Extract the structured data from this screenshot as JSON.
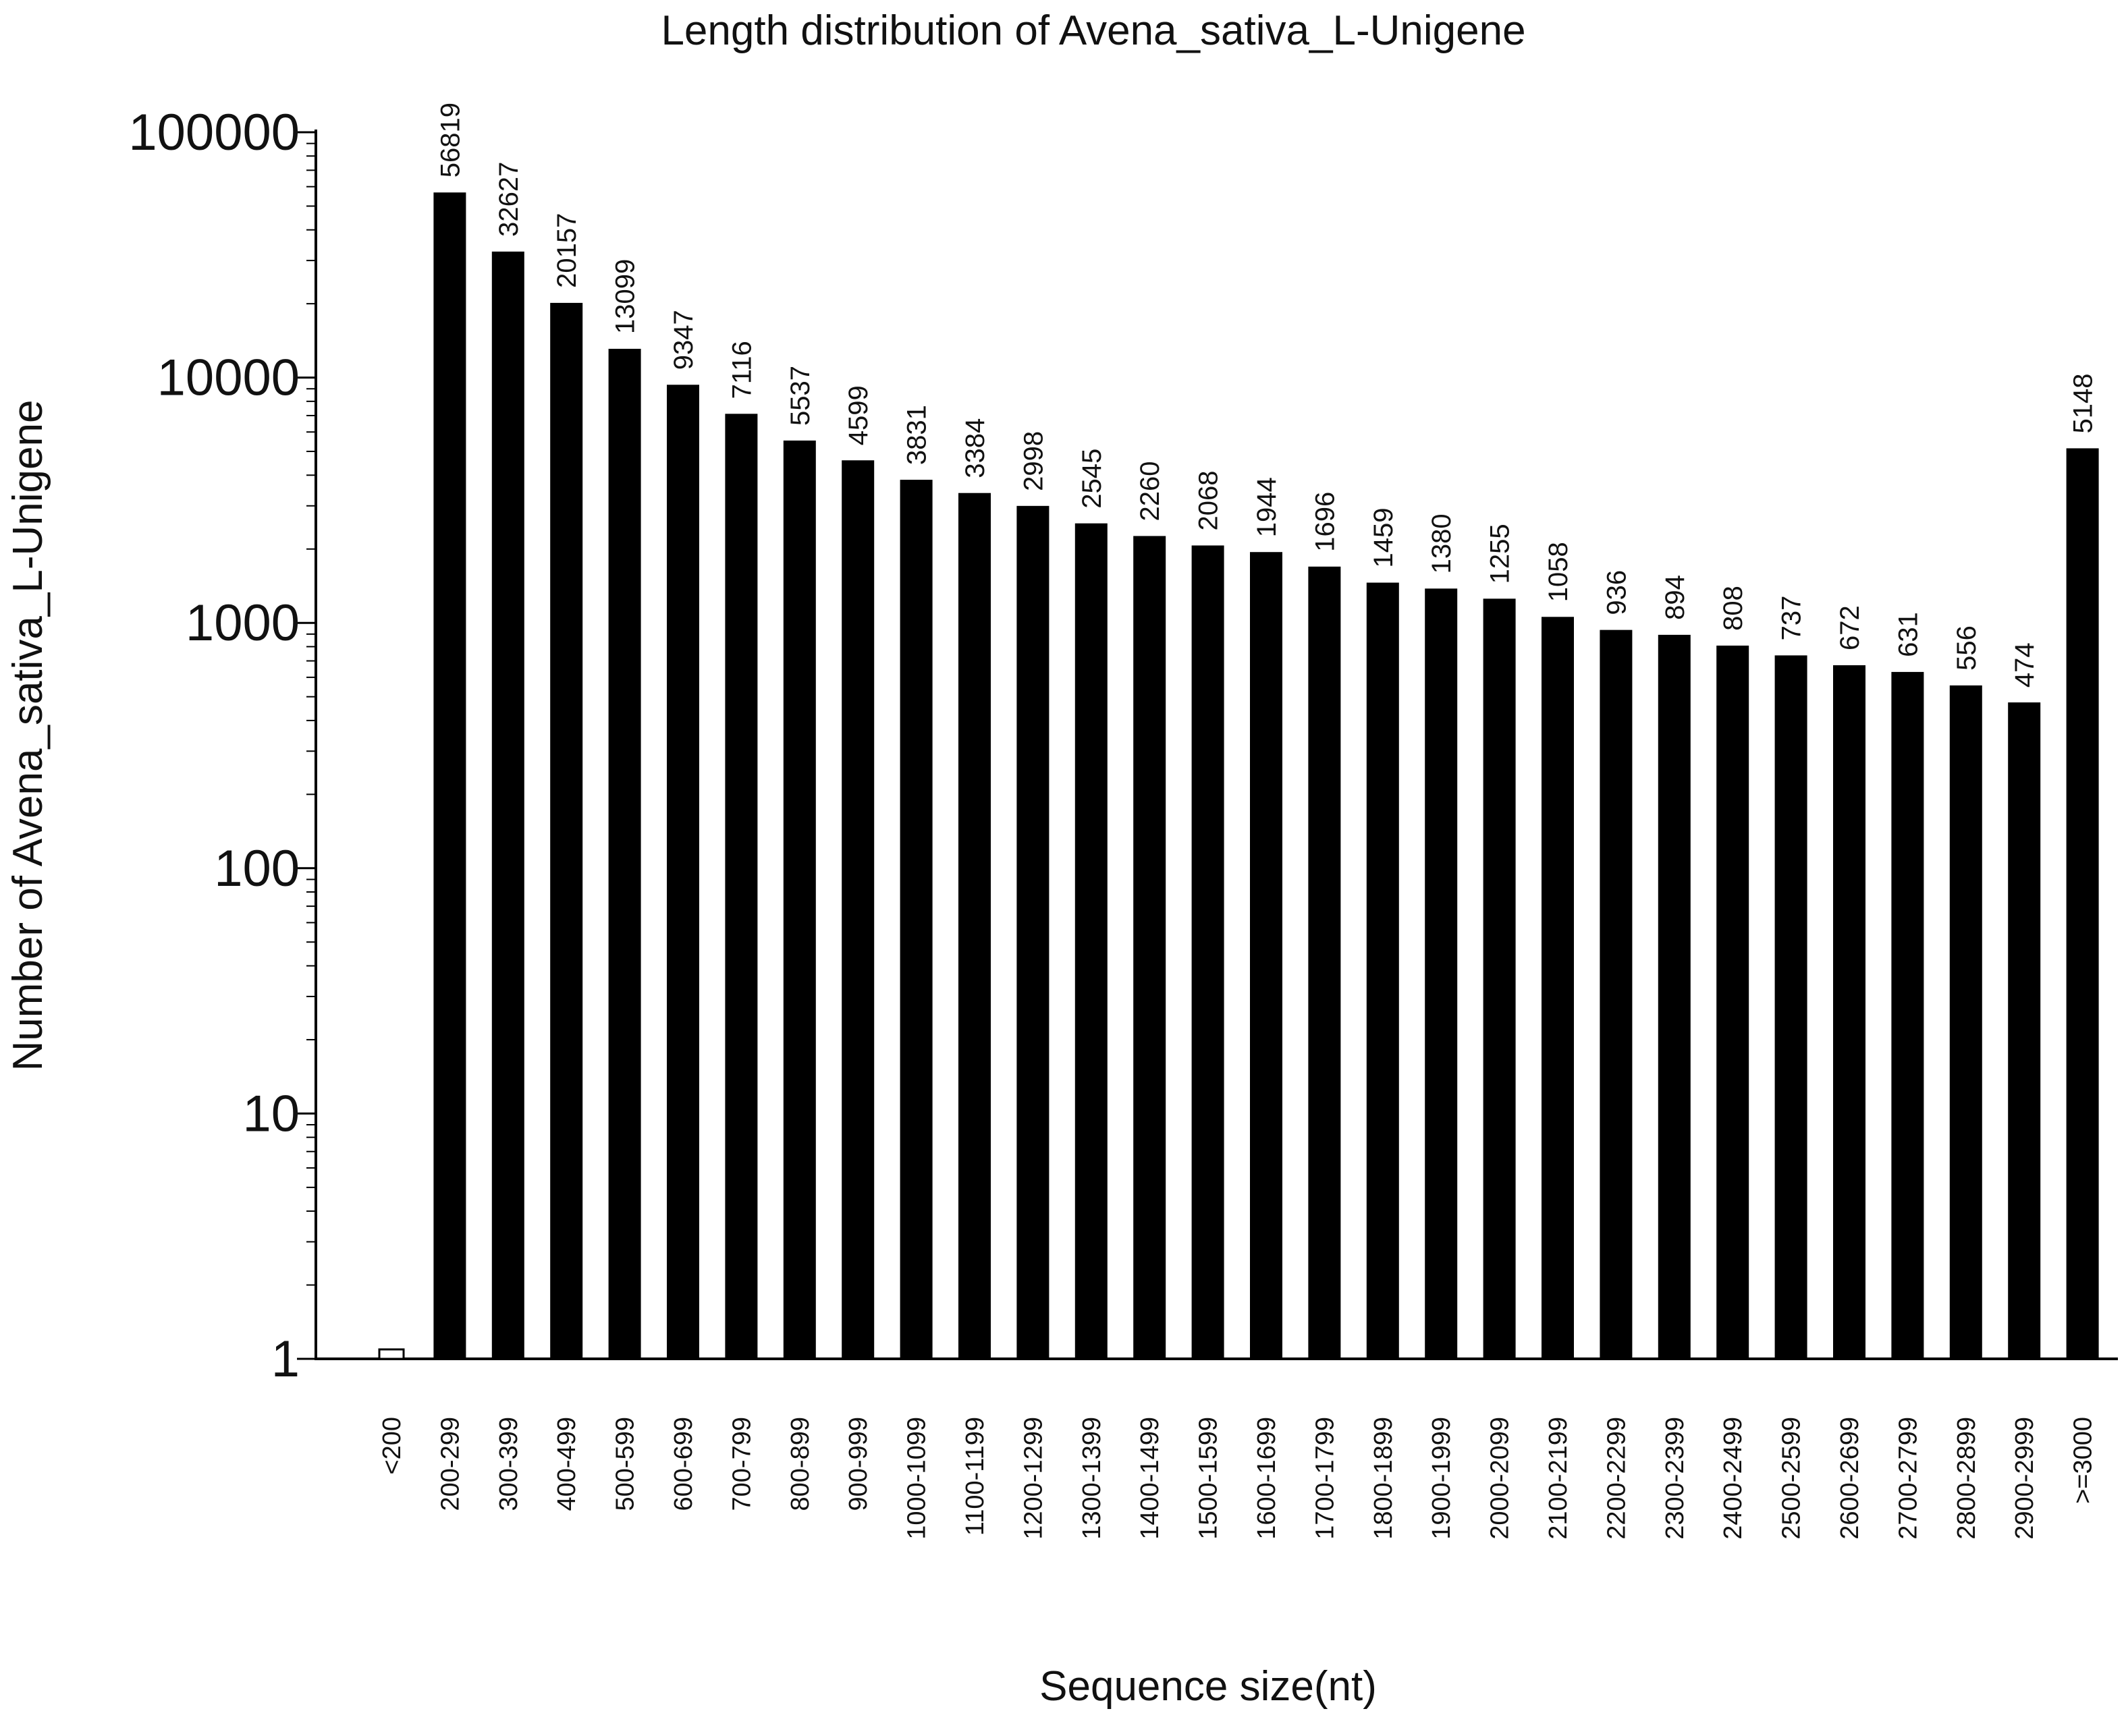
{
  "chart_data": {
    "type": "bar",
    "title": "Length distribution of Avena_sativa_L-Unigene",
    "xlabel": "Sequence size(nt)",
    "ylabel": "Number of Avena_sativa_L-Unigene",
    "y_scale": "log",
    "ylim": [
      1,
      100000
    ],
    "yticks": [
      1,
      10,
      100,
      1000,
      10000,
      100000
    ],
    "ytick_labels": [
      "1",
      "10",
      "100",
      "1000",
      "10000",
      "100000"
    ],
    "grid": false,
    "legend": "none",
    "bar_color": "#000000",
    "categories": [
      "<200",
      "200-299",
      "300-399",
      "400-499",
      "500-599",
      "600-699",
      "700-799",
      "800-899",
      "900-999",
      "1000-1099",
      "1100-1199",
      "1200-1299",
      "1300-1399",
      "1400-1499",
      "1500-1599",
      "1600-1699",
      "1700-1799",
      "1800-1899",
      "1900-1999",
      "2000-2099",
      "2100-2199",
      "2200-2299",
      "2300-2399",
      "2400-2499",
      "2500-2599",
      "2600-2699",
      "2700-2799",
      "2800-2899",
      "2900-2999",
      ">=3000"
    ],
    "values": [
      1,
      56819,
      32627,
      20157,
      13099,
      9347,
      7116,
      5537,
      4599,
      3831,
      3384,
      2998,
      2545,
      2260,
      2068,
      1944,
      1696,
      1459,
      1380,
      1255,
      1058,
      936,
      894,
      808,
      737,
      672,
      631,
      556,
      474,
      5148
    ],
    "data_labels": [
      "",
      "56819",
      "32627",
      "20157",
      "13099",
      "9347",
      "7116",
      "5537",
      "4599",
      "3831",
      "3384",
      "2998",
      "2545",
      "2260",
      "2068",
      "1944",
      "1696",
      "1459",
      "1380",
      "1255",
      "1058",
      "936",
      "894",
      "808",
      "737",
      "672",
      "631",
      "556",
      "474",
      "5148"
    ]
  }
}
